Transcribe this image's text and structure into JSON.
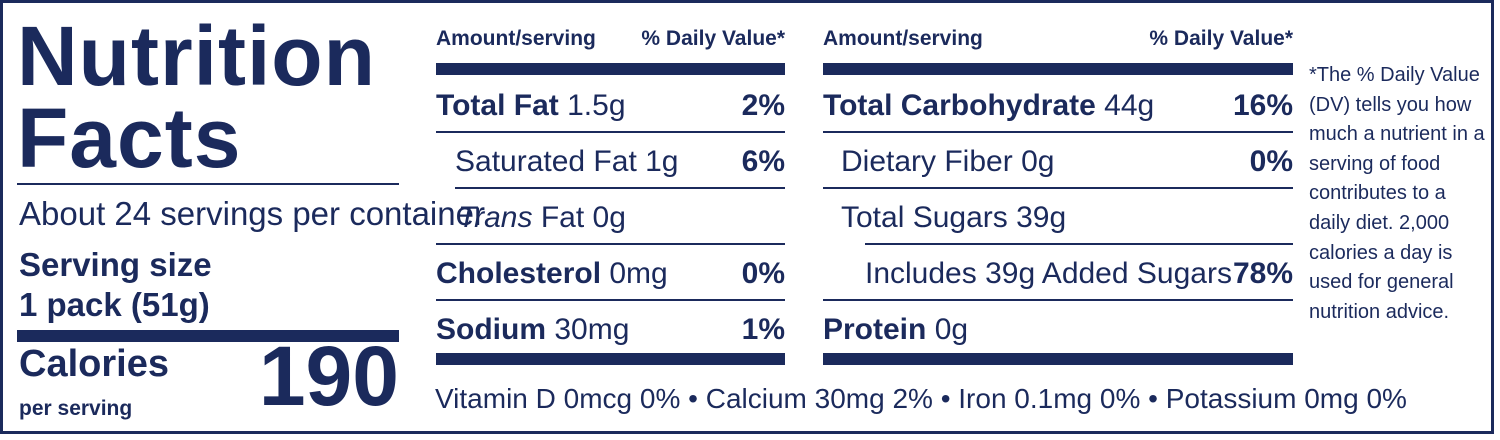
{
  "title": {
    "line1": "Nutrition",
    "line2": "Facts"
  },
  "servings_per_container": "About 24 servings per container",
  "serving_size": {
    "label": "Serving size",
    "value": "1 pack (51g)"
  },
  "calories": {
    "label": "Calories",
    "sub": "per serving",
    "value": "190"
  },
  "headers": {
    "left_amount": "Amount/serving",
    "left_dv": "% Daily Value*",
    "right_amount": "Amount/serving",
    "right_dv": "% Daily Value*"
  },
  "left_nutrients": {
    "total_fat": {
      "name": "Total Fat",
      "amount": "1.5g",
      "dv": "2%"
    },
    "saturated_fat": {
      "name": "Saturated Fat",
      "amount": "1g",
      "dv": "6%"
    },
    "trans_fat": {
      "name_italic": "Trans",
      "name_rest": "Fat",
      "amount": "0g"
    },
    "cholesterol": {
      "name": "Cholesterol",
      "amount": "0mg",
      "dv": "0%"
    },
    "sodium": {
      "name": "Sodium",
      "amount": "30mg",
      "dv": "1%"
    }
  },
  "right_nutrients": {
    "total_carbohydrate": {
      "name": "Total Carbohydrate",
      "amount": "44g",
      "dv": "16%"
    },
    "dietary_fiber": {
      "name": "Dietary Fiber",
      "amount": "0g",
      "dv": "0%"
    },
    "total_sugars": {
      "name": "Total Sugars",
      "amount": "39g"
    },
    "added_sugars": {
      "text": "Includes 39g Added Sugars",
      "dv": "78%"
    },
    "protein": {
      "name": "Protein",
      "amount": "0g"
    }
  },
  "vitamins_line": "Vitamin D 0mcg 0% • Calcium 30mg 2% • Iron 0.1mg 0% • Potassium 0mg 0%",
  "footnote": "*The % Daily Value (DV) tells you how much a nutrient in a serving of food contributes to a daily diet. 2,000 calories a day is used for general nutrition advice.",
  "colors": {
    "ink": "#1b2a5c",
    "background": "#ffffff"
  }
}
